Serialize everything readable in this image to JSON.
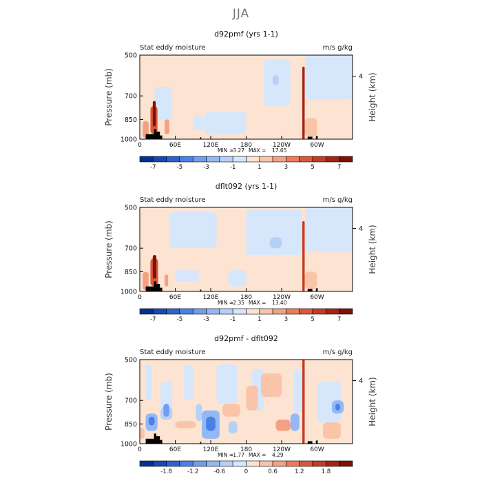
{
  "figure": {
    "title": "JJA"
  },
  "chart_data": [
    {
      "type": "heatmap",
      "title": "d92pmf (yrs 1-1)",
      "left_label": "Stat eddy moisture",
      "right_label": "m/s g/kg",
      "ylabel": "Pressure (mb)",
      "ylabel_right": "Height (km)",
      "yticks": [
        "500",
        "700",
        "850",
        "1000"
      ],
      "ytick_values": [
        500,
        700,
        850,
        1000
      ],
      "yticks_right": [
        "4"
      ],
      "xticks": [
        "0",
        "60E",
        "120E",
        "180",
        "120W",
        "60W"
      ],
      "xtick_values": [
        0,
        60,
        120,
        180,
        240,
        300
      ],
      "xlim": [
        0,
        360
      ],
      "ylim": [
        1000,
        500
      ],
      "min_label": "MIN =",
      "min_value": "-3.27",
      "max_label": "MAX =",
      "max_value": "17.65",
      "colorbar_labels": [
        "-7",
        "-5",
        "-3",
        "-1",
        "1",
        "3",
        "5",
        "7"
      ],
      "colorbar_levels": [
        -8,
        -7,
        -6,
        -5,
        -4,
        -3,
        -2,
        -1,
        0,
        1,
        2,
        3,
        4,
        5,
        6,
        7,
        8
      ],
      "features": [
        {
          "lon": 0,
          "lon2": 360,
          "p": 500,
          "p2": 1000,
          "value": 0.5
        },
        {
          "lon": 25,
          "lon2": 55,
          "p": 650,
          "p2": 850,
          "value": -0.5
        },
        {
          "lon": 90,
          "lon2": 110,
          "p": 820,
          "p2": 930,
          "value": -0.5
        },
        {
          "lon": 110,
          "lon2": 180,
          "p": 800,
          "p2": 960,
          "value": -0.5
        },
        {
          "lon": 210,
          "lon2": 255,
          "p": 520,
          "p2": 760,
          "value": -0.5
        },
        {
          "lon": 225,
          "lon2": 235,
          "p": 590,
          "p2": 640,
          "value": -1.5
        },
        {
          "lon": 280,
          "lon2": 360,
          "p": 500,
          "p2": 720,
          "value": -0.5
        },
        {
          "lon": 5,
          "lon2": 15,
          "p": 860,
          "p2": 990,
          "value": 2.5
        },
        {
          "lon": 18,
          "lon2": 30,
          "p": 760,
          "p2": 960,
          "value": 4.5
        },
        {
          "lon": 22,
          "lon2": 27,
          "p": 730,
          "p2": 900,
          "value": 7.5
        },
        {
          "lon": 42,
          "lon2": 50,
          "p": 850,
          "p2": 960,
          "value": 2.5
        },
        {
          "lon": 275,
          "lon2": 279,
          "p": 550,
          "p2": 1000,
          "value": 6.5
        },
        {
          "lon": 279,
          "lon2": 300,
          "p": 840,
          "p2": 980,
          "value": 1.5
        }
      ],
      "topography": [
        {
          "lon": 10,
          "lon2": 24,
          "p": 960
        },
        {
          "lon": 24,
          "lon2": 28,
          "p": 920
        },
        {
          "lon": 28,
          "lon2": 34,
          "p": 940
        },
        {
          "lon": 34,
          "lon2": 38,
          "p": 970
        },
        {
          "lon": 102,
          "lon2": 104,
          "p": 985
        },
        {
          "lon": 284,
          "lon2": 292,
          "p": 980
        },
        {
          "lon": 298,
          "lon2": 301,
          "p": 975
        }
      ]
    },
    {
      "type": "heatmap",
      "title": "dflt092 (yrs 1-1)",
      "left_label": "Stat eddy moisture",
      "right_label": "m/s g/kg",
      "ylabel": "Pressure (mb)",
      "ylabel_right": "Height (km)",
      "yticks": [
        "500",
        "700",
        "850",
        "1000"
      ],
      "ytick_values": [
        500,
        700,
        850,
        1000
      ],
      "yticks_right": [
        "4"
      ],
      "xticks": [
        "0",
        "60E",
        "120E",
        "180",
        "120W",
        "60W"
      ],
      "xtick_values": [
        0,
        60,
        120,
        180,
        240,
        300
      ],
      "xlim": [
        0,
        360
      ],
      "ylim": [
        1000,
        500
      ],
      "min_label": "MIN =",
      "min_value": "-2.35",
      "max_label": "MAX =",
      "max_value": "13.40",
      "colorbar_labels": [
        "-7",
        "-5",
        "-3",
        "-1",
        "1",
        "3",
        "5",
        "7"
      ],
      "colorbar_levels": [
        -8,
        -7,
        -6,
        -5,
        -4,
        -3,
        -2,
        -1,
        0,
        1,
        2,
        3,
        4,
        5,
        6,
        7,
        8
      ],
      "features": [
        {
          "lon": 0,
          "lon2": 360,
          "p": 500,
          "p2": 1000,
          "value": 0.5
        },
        {
          "lon": 50,
          "lon2": 130,
          "p": 520,
          "p2": 700,
          "value": -0.5
        },
        {
          "lon": 180,
          "lon2": 275,
          "p": 510,
          "p2": 740,
          "value": -0.5
        },
        {
          "lon": 220,
          "lon2": 240,
          "p": 640,
          "p2": 700,
          "value": -1.5
        },
        {
          "lon": 280,
          "lon2": 360,
          "p": 500,
          "p2": 720,
          "value": -0.5
        },
        {
          "lon": 60,
          "lon2": 100,
          "p": 840,
          "p2": 920,
          "value": -0.5
        },
        {
          "lon": 150,
          "lon2": 180,
          "p": 840,
          "p2": 960,
          "value": -0.5
        },
        {
          "lon": 5,
          "lon2": 15,
          "p": 850,
          "p2": 990,
          "value": 2.5
        },
        {
          "lon": 18,
          "lon2": 31,
          "p": 760,
          "p2": 960,
          "value": 4.5
        },
        {
          "lon": 22,
          "lon2": 28,
          "p": 740,
          "p2": 900,
          "value": 7.5
        },
        {
          "lon": 42,
          "lon2": 48,
          "p": 870,
          "p2": 960,
          "value": 2.5
        },
        {
          "lon": 275,
          "lon2": 279,
          "p": 560,
          "p2": 1000,
          "value": 5.5
        },
        {
          "lon": 279,
          "lon2": 300,
          "p": 850,
          "p2": 980,
          "value": 1.5
        }
      ],
      "topography": [
        {
          "lon": 10,
          "lon2": 24,
          "p": 960
        },
        {
          "lon": 24,
          "lon2": 28,
          "p": 920
        },
        {
          "lon": 28,
          "lon2": 34,
          "p": 940
        },
        {
          "lon": 34,
          "lon2": 38,
          "p": 970
        },
        {
          "lon": 102,
          "lon2": 104,
          "p": 985
        },
        {
          "lon": 284,
          "lon2": 292,
          "p": 980
        },
        {
          "lon": 298,
          "lon2": 301,
          "p": 975
        }
      ]
    },
    {
      "type": "heatmap",
      "title": "d92pmf - dflt092",
      "left_label": "Stat eddy moisture",
      "right_label": "m/s g/kg",
      "ylabel": "Pressure (mb)",
      "ylabel_right": "Height (km)",
      "yticks": [
        "500",
        "700",
        "850",
        "1000"
      ],
      "ytick_values": [
        500,
        700,
        850,
        1000
      ],
      "yticks_right": [
        "4"
      ],
      "xticks": [
        "0",
        "60E",
        "120E",
        "180",
        "120W",
        "60W"
      ],
      "xtick_values": [
        0,
        60,
        120,
        180,
        240,
        300
      ],
      "xlim": [
        0,
        360
      ],
      "ylim": [
        1000,
        500
      ],
      "min_label": "MIN =",
      "min_value": "-1.77",
      "max_label": "MAX =",
      "max_value": "4.29",
      "colorbar_labels": [
        "-1.8",
        "-1.2",
        "-0.6",
        "0",
        "0.6",
        "1.2",
        "1.8"
      ],
      "colorbar_levels": [
        -2.4,
        -2.1,
        -1.8,
        -1.5,
        -1.2,
        -0.9,
        -0.6,
        -0.3,
        0,
        0.3,
        0.6,
        0.9,
        1.2,
        1.5,
        1.8,
        2.1,
        2.4
      ],
      "features": [
        {
          "lon": 0,
          "lon2": 360,
          "p": 500,
          "p2": 1000,
          "value": 0.15
        },
        {
          "lon": 10,
          "lon2": 20,
          "p": 520,
          "p2": 700,
          "value": -0.15
        },
        {
          "lon": 35,
          "lon2": 55,
          "p": 600,
          "p2": 780,
          "value": -0.15
        },
        {
          "lon": 75,
          "lon2": 90,
          "p": 520,
          "p2": 700,
          "value": -0.15
        },
        {
          "lon": 130,
          "lon2": 165,
          "p": 520,
          "p2": 720,
          "value": -0.15
        },
        {
          "lon": 190,
          "lon2": 210,
          "p": 540,
          "p2": 760,
          "value": -0.15
        },
        {
          "lon": 260,
          "lon2": 275,
          "p": 540,
          "p2": 780,
          "value": -0.15
        },
        {
          "lon": 300,
          "lon2": 340,
          "p": 600,
          "p2": 840,
          "value": -0.15
        },
        {
          "lon": 10,
          "lon2": 30,
          "p": 780,
          "p2": 900,
          "value": -0.75
        },
        {
          "lon": 15,
          "lon2": 25,
          "p": 800,
          "p2": 860,
          "value": -1.35
        },
        {
          "lon": 35,
          "lon2": 55,
          "p": 740,
          "p2": 820,
          "value": -0.45
        },
        {
          "lon": 40,
          "lon2": 50,
          "p": 720,
          "p2": 800,
          "value": -1.05
        },
        {
          "lon": 105,
          "lon2": 135,
          "p": 760,
          "p2": 960,
          "value": -0.75
        },
        {
          "lon": 112,
          "lon2": 128,
          "p": 800,
          "p2": 900,
          "value": -1.35
        },
        {
          "lon": 95,
          "lon2": 105,
          "p": 720,
          "p2": 830,
          "value": -0.45
        },
        {
          "lon": 150,
          "lon2": 165,
          "p": 830,
          "p2": 920,
          "value": -0.45
        },
        {
          "lon": 255,
          "lon2": 270,
          "p": 780,
          "p2": 900,
          "value": -0.75
        },
        {
          "lon": 325,
          "lon2": 345,
          "p": 700,
          "p2": 780,
          "value": -0.75
        },
        {
          "lon": 331,
          "lon2": 339,
          "p": 720,
          "p2": 760,
          "value": -1.35
        },
        {
          "lon": 205,
          "lon2": 240,
          "p": 560,
          "p2": 680,
          "value": 0.45
        },
        {
          "lon": 180,
          "lon2": 200,
          "p": 620,
          "p2": 760,
          "value": 0.45
        },
        {
          "lon": 230,
          "lon2": 255,
          "p": 820,
          "p2": 900,
          "value": 0.75
        },
        {
          "lon": 60,
          "lon2": 95,
          "p": 830,
          "p2": 880,
          "value": 0.45
        },
        {
          "lon": 140,
          "lon2": 170,
          "p": 720,
          "p2": 800,
          "value": 0.45
        },
        {
          "lon": 310,
          "lon2": 340,
          "p": 840,
          "p2": 960,
          "value": 0.45
        },
        {
          "lon": 0,
          "lon2": 8,
          "p": 880,
          "p2": 960,
          "value": 0.45
        },
        {
          "lon": 275,
          "lon2": 279,
          "p": 500,
          "p2": 1000,
          "value": 1.65
        }
      ],
      "topography": [
        {
          "lon": 10,
          "lon2": 24,
          "p": 960
        },
        {
          "lon": 24,
          "lon2": 28,
          "p": 920
        },
        {
          "lon": 28,
          "lon2": 34,
          "p": 940
        },
        {
          "lon": 34,
          "lon2": 38,
          "p": 970
        },
        {
          "lon": 102,
          "lon2": 104,
          "p": 985
        },
        {
          "lon": 284,
          "lon2": 292,
          "p": 980
        },
        {
          "lon": 298,
          "lon2": 301,
          "p": 975
        }
      ]
    }
  ]
}
